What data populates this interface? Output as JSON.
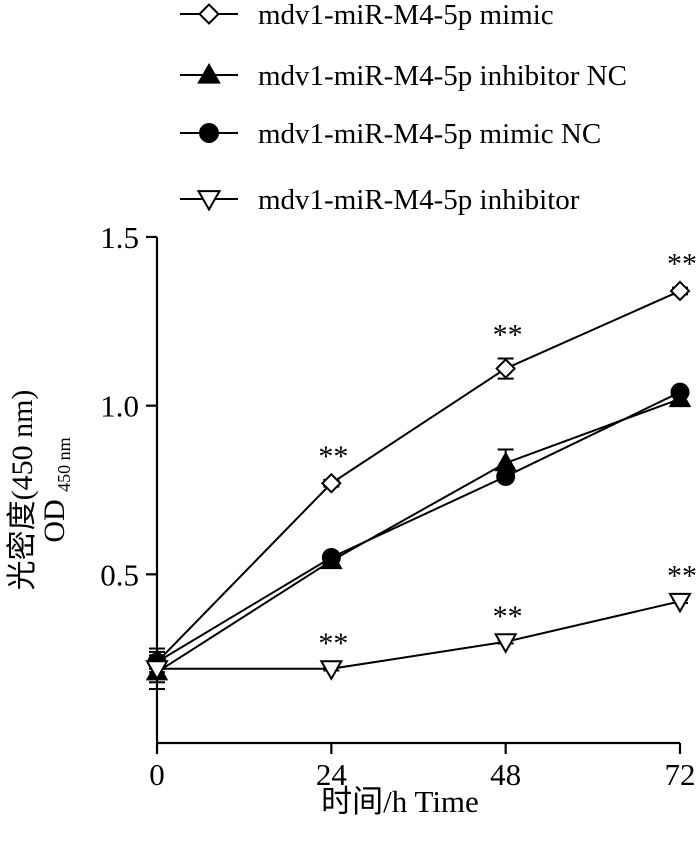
{
  "chart_data": {
    "type": "line",
    "xlabel": "时间/h Time",
    "ylabel_line1": "光密度(450 nm)",
    "ylabel_line2_main": "OD",
    "ylabel_line2_sub": "450 nm",
    "x": [
      0,
      24,
      48,
      72
    ],
    "x_tick_labels": [
      "0",
      "24",
      "48",
      "72"
    ],
    "xlim": [
      0,
      72
    ],
    "y_ticks": [
      0.5,
      1.0,
      1.5
    ],
    "y_tick_labels": [
      "0.5",
      "1.0",
      "1.5"
    ],
    "ylim": [
      0,
      1.5
    ],
    "grid": false,
    "legend_position": "top",
    "series": [
      {
        "name": "mdv1-miR-M4-5p mimic",
        "marker": "diamond-open",
        "values": [
          0.24,
          0.77,
          1.11,
          1.34
        ],
        "errors": [
          0.03,
          0.01,
          0.03,
          0.01
        ],
        "significance": [
          "",
          "**",
          "**",
          "**"
        ]
      },
      {
        "name": "mdv1-miR-M4-5p inhibitor NC",
        "marker": "triangle-up-filled",
        "values": [
          0.21,
          0.54,
          0.83,
          1.02
        ],
        "errors": [
          0.03,
          0.01,
          0.04,
          0.01
        ],
        "significance": [
          "",
          "",
          "",
          ""
        ]
      },
      {
        "name": "mdv1-miR-M4-5p mimic NC",
        "marker": "circle-filled",
        "values": [
          0.24,
          0.55,
          0.79,
          1.04
        ],
        "errors": [
          0.02,
          0.01,
          0.01,
          0.01
        ],
        "significance": [
          "",
          "",
          "",
          ""
        ]
      },
      {
        "name": "mdv1-miR-M4-5p inhibitor",
        "marker": "triangle-down-open",
        "values": [
          0.22,
          0.22,
          0.3,
          0.42
        ],
        "errors": [
          0.06,
          0.005,
          0.005,
          0.005
        ],
        "significance": [
          "",
          "**",
          "**",
          "**"
        ]
      }
    ]
  }
}
